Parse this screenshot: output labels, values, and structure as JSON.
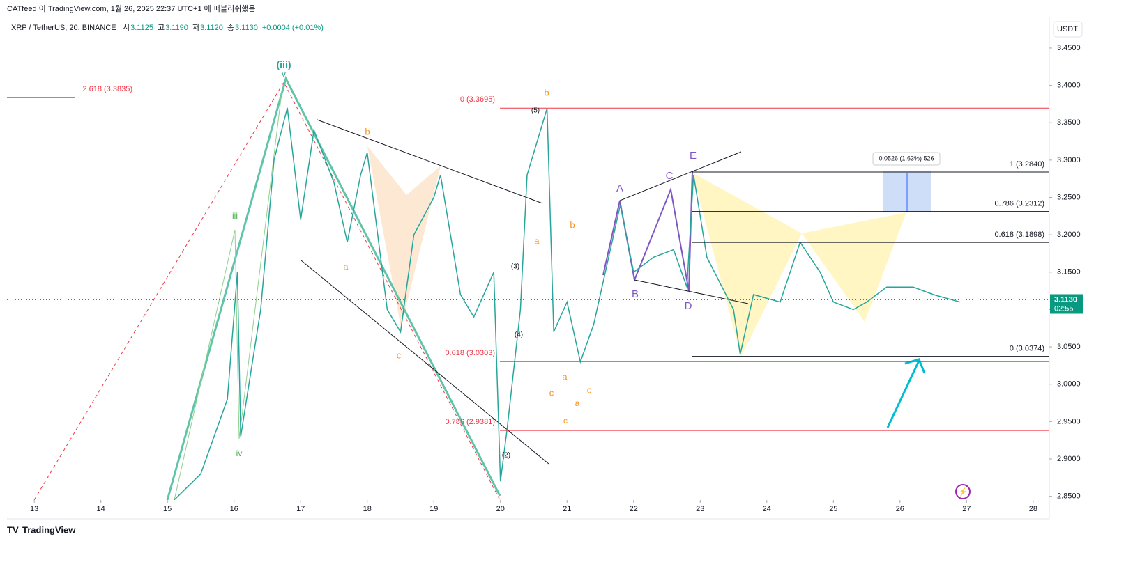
{
  "header": {
    "publisher": "CATfeed 이 TradingView.com, 1월 26, 2025 22:37 UTC+1 에 퍼블리쉬했음",
    "symbol": "XRP / TetherUS, 20, BINANCE",
    "ohlc": [
      [
        "시",
        "3.1125"
      ],
      [
        "고",
        "3.1190"
      ],
      [
        "저",
        "3.1120"
      ],
      [
        "종",
        "3.1130"
      ]
    ],
    "change": "+0.0004 (+0.01%)",
    "currency": "USDT",
    "logo": "TradingView"
  },
  "chart_data": {
    "type": "line",
    "color": "#26a69a",
    "x": [
      15.1,
      15.5,
      15.9,
      16.05,
      16.1,
      16.4,
      16.6,
      16.8,
      17.0,
      17.2,
      17.5,
      17.7,
      17.9,
      18.0,
      18.3,
      18.5,
      18.7,
      19.0,
      19.1,
      19.4,
      19.6,
      19.9,
      20.0,
      20.1,
      20.3,
      20.4,
      20.7,
      20.8,
      21.0,
      21.2,
      21.4,
      21.8,
      22.0,
      22.3,
      22.6,
      22.8,
      22.9,
      23.1,
      23.5,
      23.6,
      23.8,
      24.2,
      24.5,
      24.8,
      25.0,
      25.3,
      25.5,
      25.8,
      26.2,
      26.5,
      26.9
    ],
    "values": [
      2.845,
      2.88,
      2.98,
      3.15,
      2.93,
      3.1,
      3.3,
      3.37,
      3.22,
      3.34,
      3.27,
      3.19,
      3.28,
      3.31,
      3.1,
      3.07,
      3.2,
      3.25,
      3.28,
      3.12,
      3.09,
      3.15,
      2.87,
      2.94,
      3.1,
      3.28,
      3.369,
      3.07,
      3.11,
      3.03,
      3.08,
      3.24,
      3.15,
      3.17,
      3.18,
      3.13,
      3.28,
      3.17,
      3.1,
      3.04,
      3.12,
      3.11,
      3.19,
      3.15,
      3.11,
      3.1,
      3.11,
      3.13,
      3.13,
      3.12,
      3.11
    ],
    "xlim": [
      12.59,
      28.19
    ],
    "xticks": [
      13,
      14,
      15,
      16,
      17,
      18,
      19,
      20,
      21,
      22,
      23,
      24,
      25,
      26,
      27,
      28
    ],
    "ylim": [
      2.845,
      3.463
    ],
    "yticks": [
      {
        "value": 2.85,
        "label": "2.8500"
      },
      {
        "value": 2.9,
        "label": "2.9000"
      },
      {
        "value": 2.95,
        "label": "2.9500"
      },
      {
        "value": 3.0,
        "label": "3.0000"
      },
      {
        "value": 3.05,
        "label": "3.0500"
      },
      {
        "value": 3.1,
        "label": "3.1000"
      },
      {
        "value": 3.15,
        "label": "3.1500"
      },
      {
        "value": 3.2,
        "label": "3.2000"
      },
      {
        "value": 3.25,
        "label": "3.2500"
      },
      {
        "value": 3.3,
        "label": "3.3000"
      },
      {
        "value": 3.35,
        "label": "3.3500"
      },
      {
        "value": 3.4,
        "label": "3.4000"
      },
      {
        "value": 3.45,
        "label": "3.4500"
      }
    ],
    "last_price": {
      "value": 3.113,
      "label": "3.1130",
      "countdown": "02:55"
    },
    "fib_red": [
      {
        "value": 3.3835,
        "label": "2.618 (3.3835)"
      },
      {
        "value": 3.3695,
        "label": "0 (3.3695)"
      },
      {
        "value": 3.0303,
        "label": "0.618 (3.0303)"
      },
      {
        "value": 2.9381,
        "label": "0.786 (2.9381)"
      }
    ],
    "fib_black": [
      {
        "value": 3.284,
        "label": "1 (3.2840)"
      },
      {
        "value": 3.2312,
        "label": "0.786 (3.2312)"
      },
      {
        "value": 3.1898,
        "label": "0.618 (3.1898)"
      },
      {
        "value": 3.0374,
        "label": "0 (3.0374)"
      }
    ],
    "measure": "0.0526 (1.63%) 526",
    "wave_labels": [
      "(iii)",
      "v",
      "iii",
      "iv",
      "b",
      "a",
      "c",
      "b",
      "a",
      "c",
      "(5)",
      "(3)",
      "(4)",
      "(2)",
      "b",
      "a",
      "c",
      "a",
      "c",
      "A",
      "B",
      "C",
      "D",
      "E"
    ]
  }
}
